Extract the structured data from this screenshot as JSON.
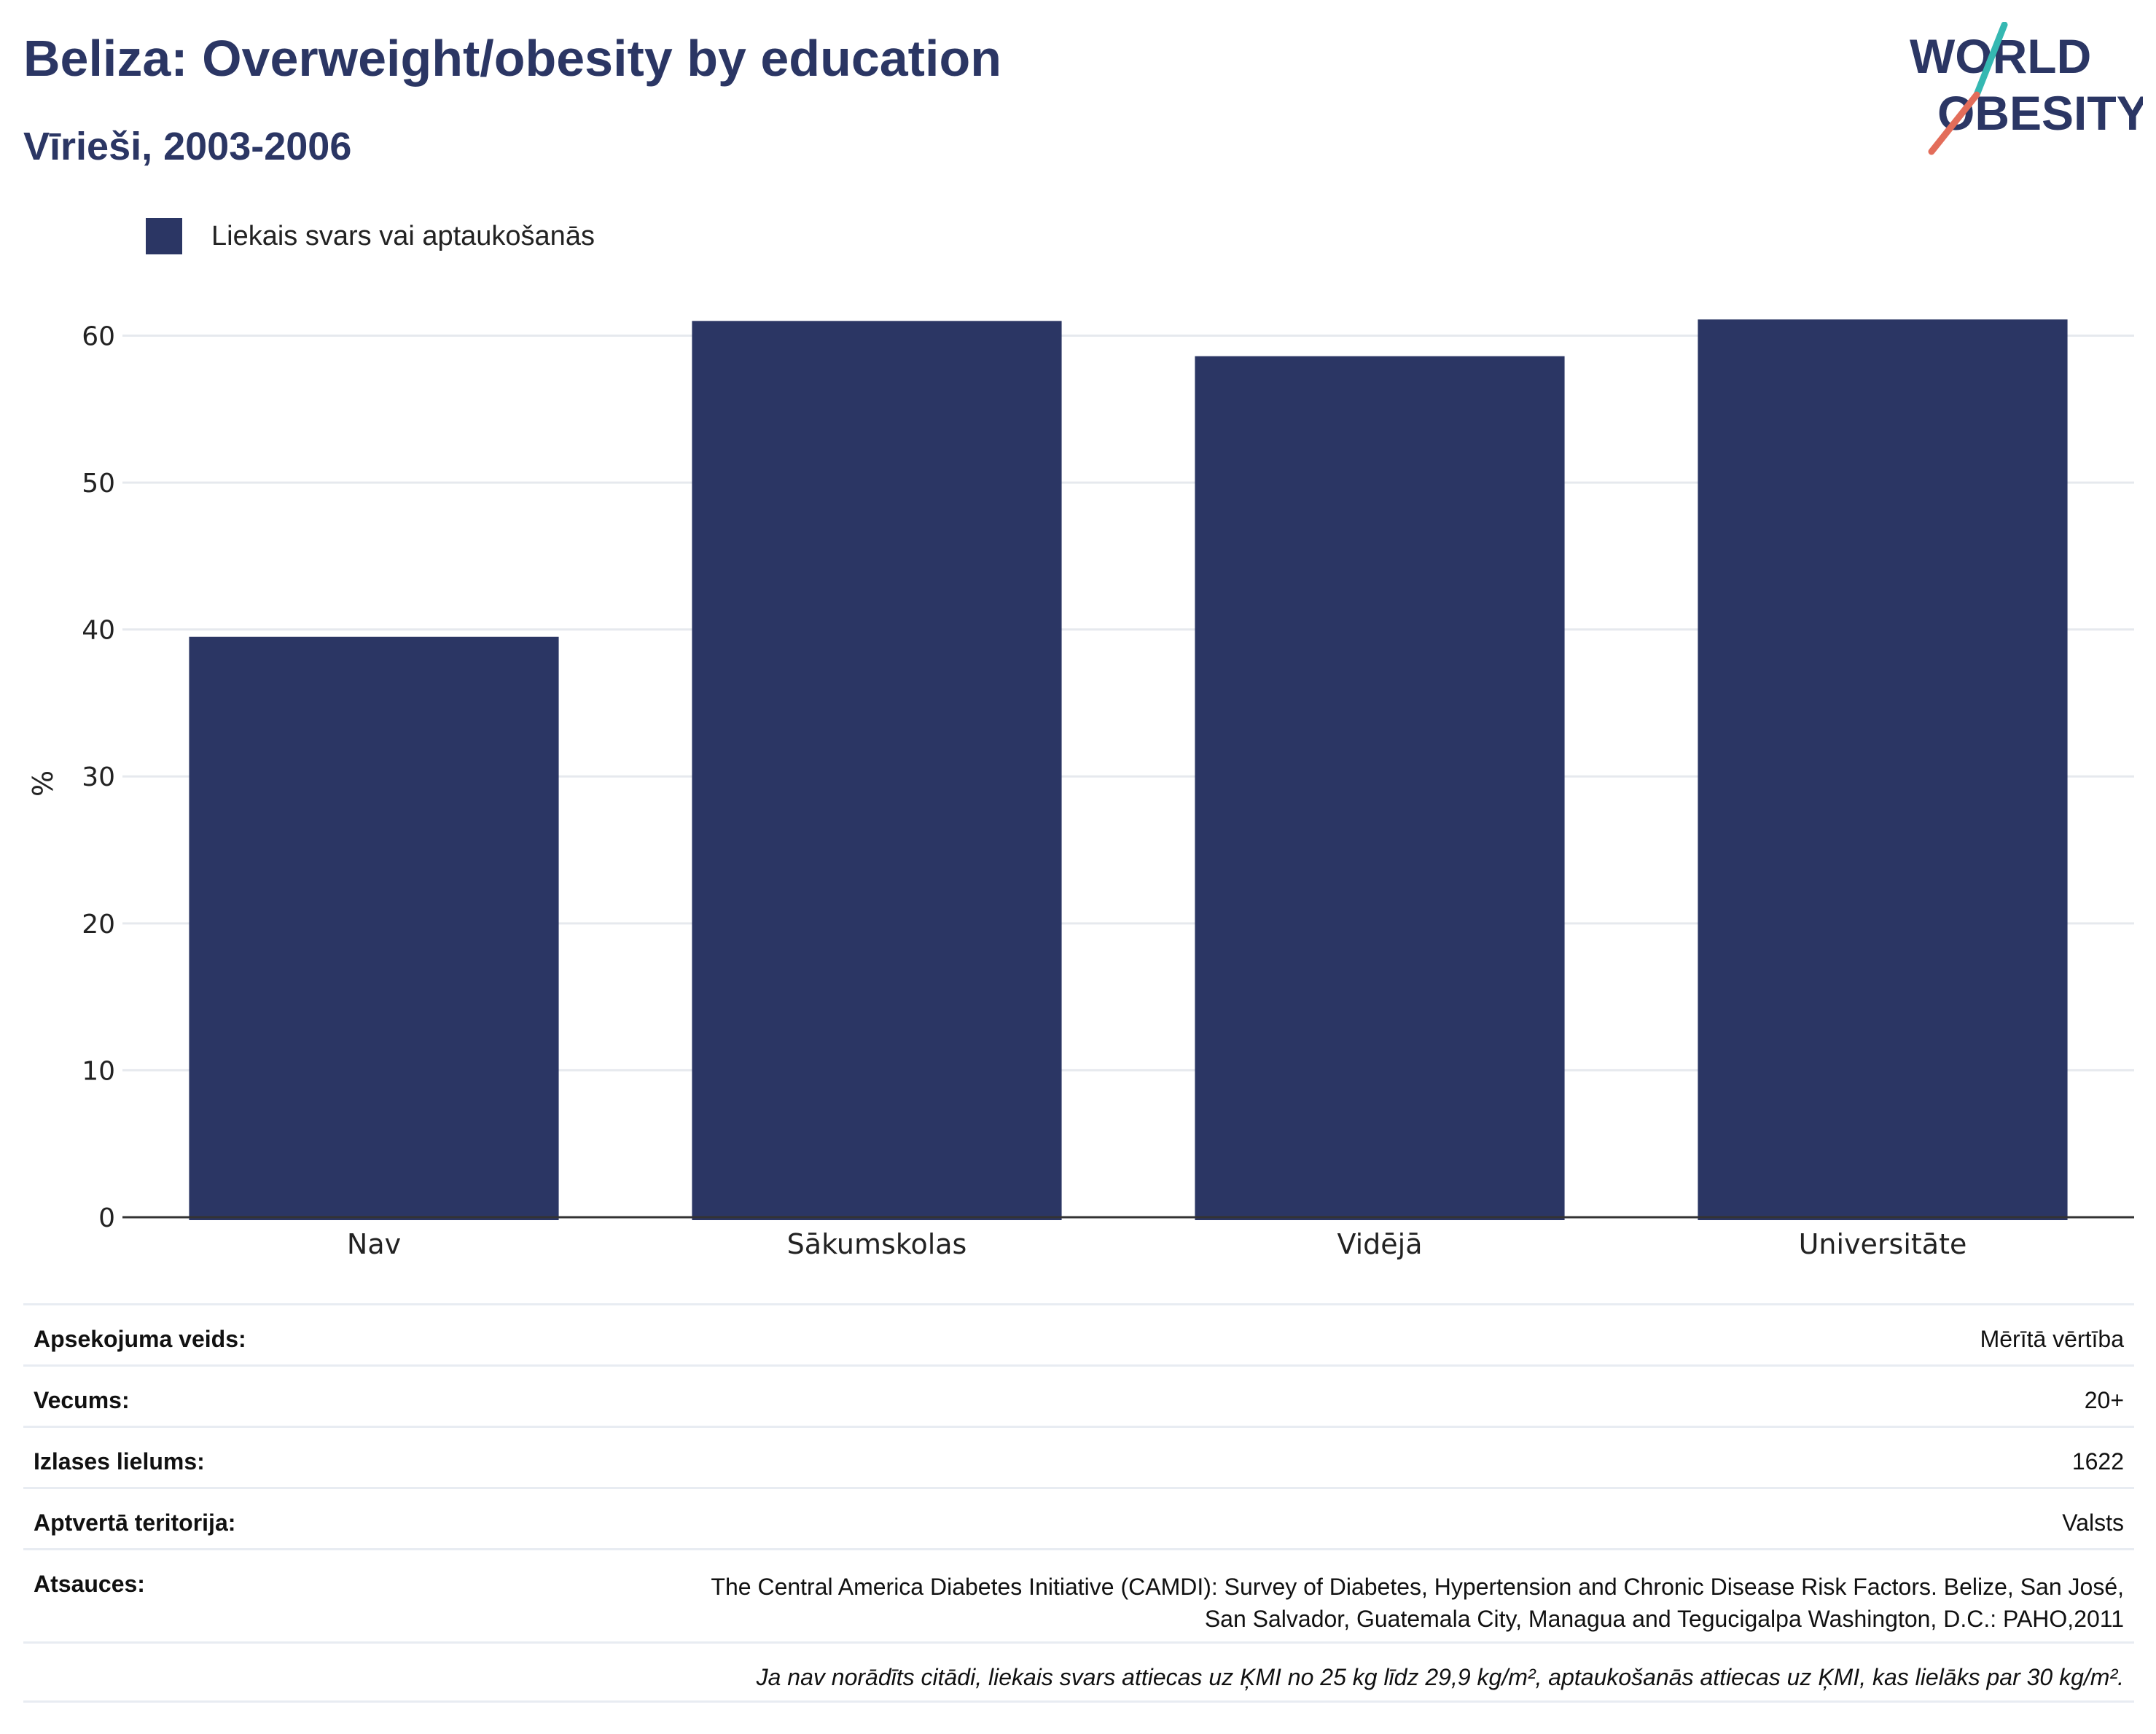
{
  "header": {
    "title": "Beliza: Overweight/obesity by education",
    "subtitle": "Vīrieši, 2003-2006"
  },
  "logo": {
    "line1": "WORLD",
    "line2": "OBESITY",
    "icon": "world-obesity-logo"
  },
  "colors": {
    "bar": "#2b3664",
    "title": "#2b3664",
    "logo_teal": "#35b8b2",
    "logo_coral": "#e36d5a"
  },
  "legend": {
    "label": "Liekais svars vai aptaukošanās",
    "position": "top-left"
  },
  "chart_data": {
    "type": "bar",
    "categories": [
      "Nav",
      "Sākumskolas",
      "Vidējā",
      "Universitāte"
    ],
    "series": [
      {
        "name": "Liekais svars vai aptaukošanās",
        "values": [
          39.5,
          61.0,
          58.6,
          61.1
        ]
      }
    ],
    "ylabel": "%",
    "ylim": [
      0,
      63
    ],
    "yticks": [
      0,
      10,
      20,
      30,
      40,
      50,
      60
    ],
    "grid": true
  },
  "info": {
    "rows": [
      {
        "key": "Apsekojuma veids:",
        "value": "Mērītā vērtība"
      },
      {
        "key": "Vecums:",
        "value": "20+"
      },
      {
        "key": "Izlases lielums:",
        "value": "1622"
      },
      {
        "key": "Aptvertā teritorija:",
        "value": "Valsts"
      }
    ],
    "references_key": "Atsauces:",
    "references_line1": "The Central America Diabetes Initiative (CAMDI): Survey of Diabetes, Hypertension and Chronic Disease Risk Factors. Belize, San José,",
    "references_line2": "San Salvador, Guatemala City, Managua and Tegucigalpa Washington, D.C.: PAHO,2011",
    "note": "Ja nav norādīts citādi, liekais svars attiecas uz ĶMI no 25 kg līdz 29,9 kg/m², aptaukošanās attiecas uz ĶMI, kas lielāks par 30 kg/m²."
  }
}
